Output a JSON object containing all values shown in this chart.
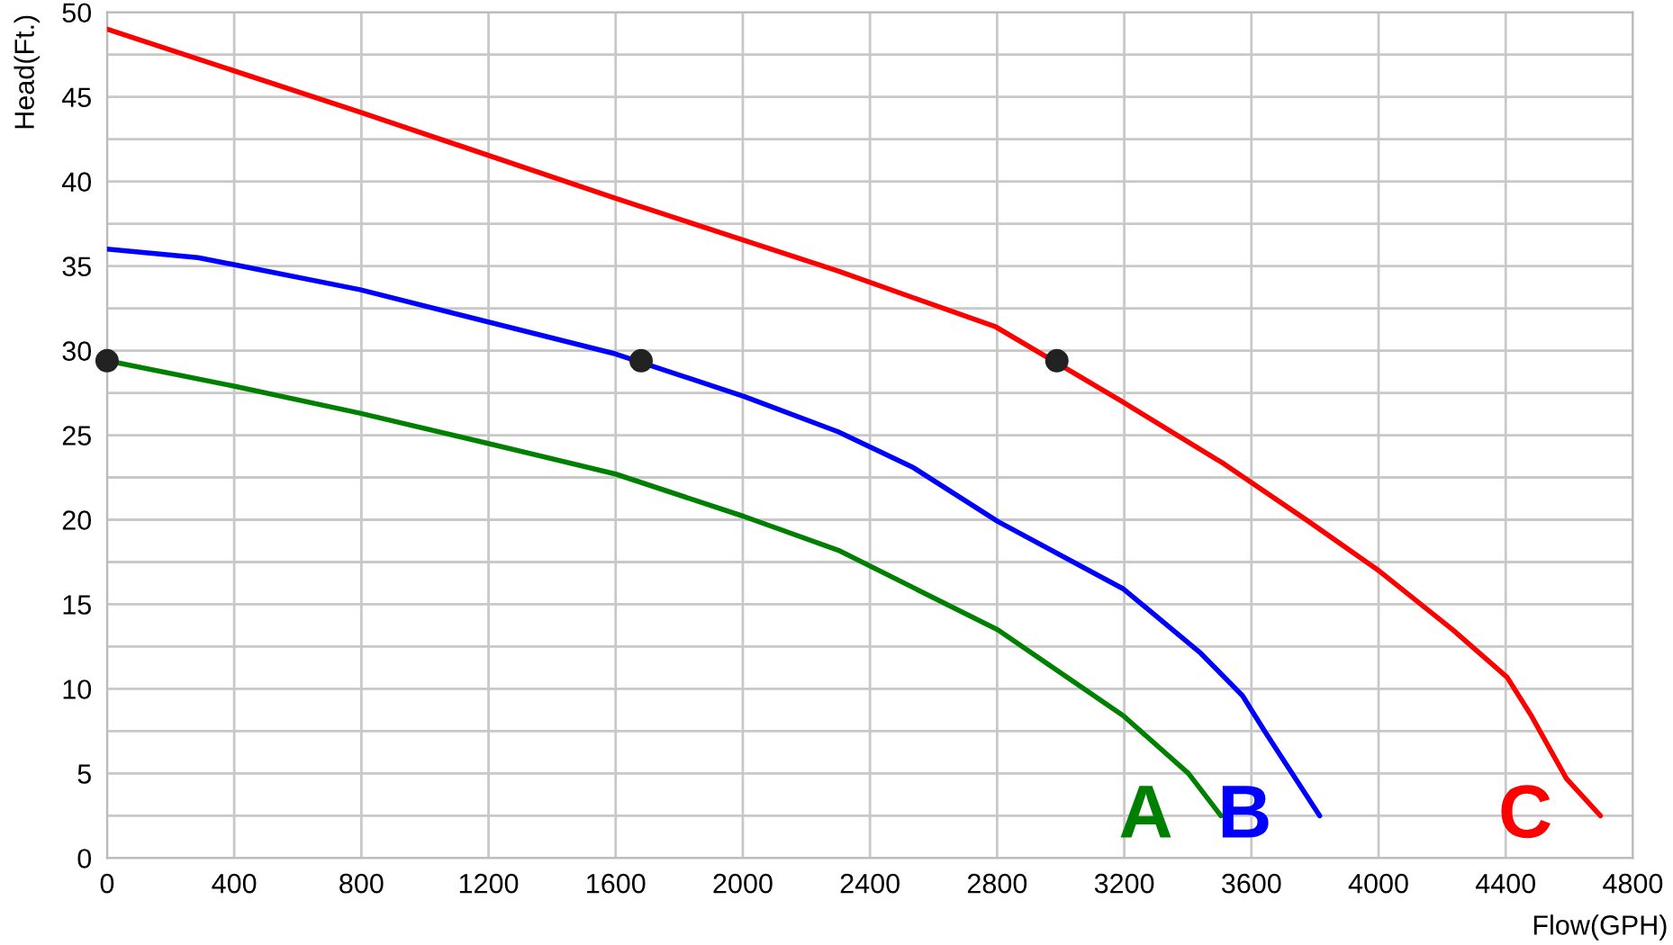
{
  "chart_data": {
    "type": "line",
    "xlabel": "Flow(GPH)",
    "ylabel": "Head(Ft.)",
    "xlim": [
      0,
      4800
    ],
    "xticks": [
      0,
      400,
      800,
      1200,
      1600,
      2000,
      2400,
      2800,
      3200,
      3600,
      4000,
      4400,
      4800
    ],
    "ylim": [
      0,
      50
    ],
    "yticks": [
      0,
      {
        "value": 2.5,
        "label": null
      },
      5,
      {
        "value": 7.5,
        "label": null
      },
      10,
      {
        "value": 12.5,
        "label": null
      },
      15,
      {
        "value": 17.5,
        "label": null
      },
      20,
      {
        "value": 22.5,
        "label": null
      },
      25,
      {
        "value": 27.5,
        "label": null
      },
      30,
      {
        "value": 32.5,
        "label": null
      },
      35,
      {
        "value": 37.5,
        "label": null
      },
      40,
      {
        "value": 42.5,
        "label": null
      },
      45,
      {
        "value": 47.5,
        "label": null
      },
      50
    ],
    "grid": true,
    "legend": false,
    "series": [
      {
        "name": "C",
        "color": "#ff0000",
        "x": [
          0,
          796,
          1600,
          2300,
          2796,
          3192,
          3514,
          3780,
          4000,
          4233,
          4404,
          4478,
          4591,
          4698
        ],
        "values": [
          49.0,
          44.1,
          39.0,
          34.7,
          31.4,
          27.0,
          23.3,
          19.9,
          17.0,
          13.5,
          10.7,
          8.5,
          4.7,
          2.5
        ]
      },
      {
        "name": "B",
        "color": "#0000ff",
        "x": [
          0,
          286,
          796,
          1600,
          2003,
          2300,
          2535,
          2802,
          3198,
          3441,
          3572,
          3645,
          3815
        ],
        "values": [
          36.0,
          35.5,
          33.6,
          29.8,
          27.3,
          25.2,
          23.1,
          19.9,
          15.9,
          12.1,
          9.6,
          7.4,
          2.5
        ]
      },
      {
        "name": "A",
        "color": "#008000",
        "x": [
          0,
          399,
          796,
          1202,
          1600,
          2003,
          2300,
          2802,
          3198,
          3402,
          3504
        ],
        "values": [
          29.4,
          27.9,
          26.3,
          24.5,
          22.7,
          20.2,
          18.2,
          13.5,
          8.4,
          5.0,
          2.5
        ]
      },
      {
        "type": "scatter",
        "color": "#222222",
        "x": [
          0,
          1680,
          2988
        ],
        "values": [
          29.4,
          29.4,
          29.4
        ]
      }
    ]
  }
}
